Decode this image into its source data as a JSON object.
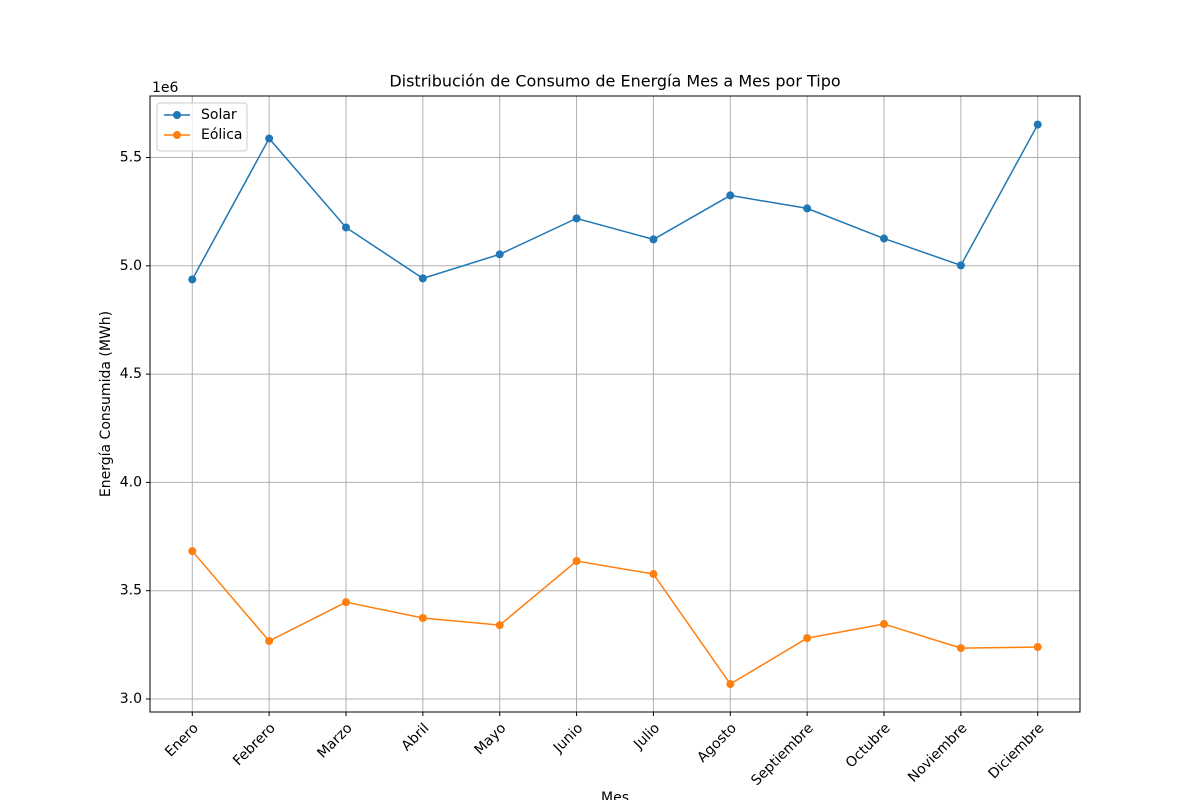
{
  "chart_data": {
    "type": "line",
    "title": "Distribución de Consumo de Energía Mes a Mes por Tipo",
    "x_label": "Mes",
    "y_label": "Energía Consumida (MWh)",
    "y_offset_label": "1e6",
    "categories": [
      "Enero",
      "Febrero",
      "Marzo",
      "Abril",
      "Mayo",
      "Junio",
      "Julio",
      "Agosto",
      "Septiembre",
      "Octubre",
      "Noviembre",
      "Diciembre"
    ],
    "series": [
      {
        "name": "Solar",
        "color": "#1f77b4",
        "values": [
          4937000,
          5588000,
          5177000,
          4942000,
          5053000,
          5219000,
          5122000,
          5325000,
          5265000,
          5126000,
          5002000,
          5652000
        ]
      },
      {
        "name": "Eólica",
        "color": "#ff7f0e",
        "values": [
          3683000,
          3268000,
          3447000,
          3374000,
          3341000,
          3637000,
          3577000,
          3069000,
          3281000,
          3346000,
          3235000,
          3240000
        ]
      }
    ],
    "ylim": [
      2940000,
      5784000
    ],
    "yticks": [
      {
        "value": 3000000,
        "label": "3.0"
      },
      {
        "value": 3500000,
        "label": "3.5"
      },
      {
        "value": 4000000,
        "label": "4.0"
      },
      {
        "value": 4500000,
        "label": "4.5"
      },
      {
        "value": 5000000,
        "label": "5.0"
      },
      {
        "value": 5500000,
        "label": "5.5"
      }
    ],
    "grid": true,
    "legend": "upper left"
  }
}
